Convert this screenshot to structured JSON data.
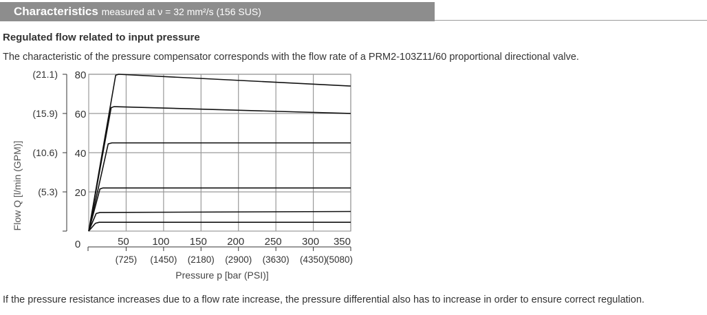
{
  "header": {
    "title": "Characteristics",
    "subtitle": "measured at ν = 32 mm²/s (156 SUS)"
  },
  "section_title": "Regulated flow related to input pressure",
  "intro": "The characteristic of the pressure compensator corresponds with the flow rate of a PRM2-103Z11/60 proportional directional valve.",
  "footer": "If the pressure resistance increases due to a flow rate increase, the pressure differential also has to increase in order to ensure correct regulation.",
  "chart_data": {
    "type": "line",
    "xlabel": "Pressure p [bar (PSI)]",
    "ylabel": "Flow Q [l/min (GPM)]",
    "xlim": [
      0,
      350
    ],
    "ylim": [
      0,
      80
    ],
    "x_ticks": [
      50,
      100,
      150,
      200,
      250,
      300,
      350
    ],
    "x_ticks_secondary": [
      "(725)",
      "(1450)",
      "(2180)",
      "(2900)",
      "(3630)",
      "(4350)",
      "(5080)"
    ],
    "y_ticks": [
      20,
      40,
      60,
      80
    ],
    "y_ticks_secondary": [
      "(5.3)",
      "(10.6)",
      "(15.9)",
      "(21.1)"
    ],
    "zero_label": "0",
    "grid": true,
    "series": [
      {
        "x": [
          0,
          36,
          40,
          350
        ],
        "y": [
          0,
          79.5,
          80,
          74
        ]
      },
      {
        "x": [
          0,
          30,
          34,
          350
        ],
        "y": [
          0,
          63,
          63.5,
          60
        ]
      },
      {
        "x": [
          0,
          26,
          31,
          350
        ],
        "y": [
          0,
          44.5,
          45,
          45
        ]
      },
      {
        "x": [
          0,
          15,
          19,
          350
        ],
        "y": [
          0,
          21.5,
          22,
          22
        ]
      },
      {
        "x": [
          0,
          10,
          15,
          350
        ],
        "y": [
          0,
          9,
          9.5,
          10
        ]
      },
      {
        "x": [
          0,
          9,
          14,
          350
        ],
        "y": [
          0,
          4,
          4.5,
          4.5
        ]
      }
    ],
    "line_color": "#111111",
    "grid_color": "#999999"
  }
}
